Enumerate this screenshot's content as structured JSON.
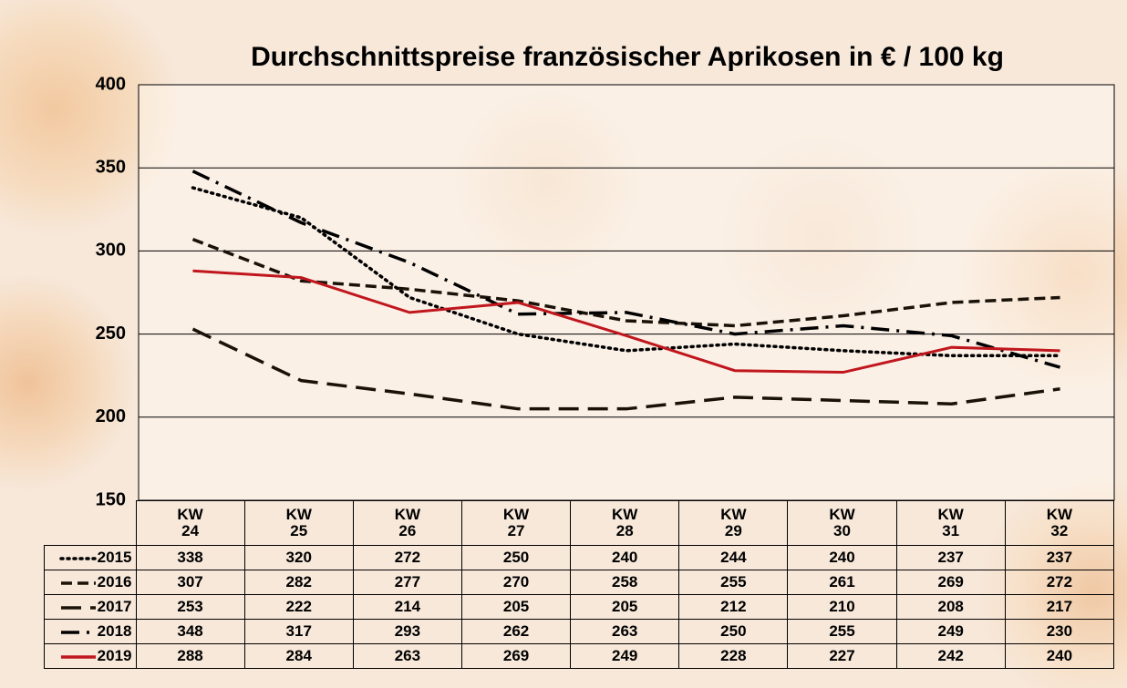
{
  "chart_data": {
    "type": "line",
    "title": "Durchschnittspreise französischer Aprikosen in € / 100 kg",
    "categories": [
      "KW 24",
      "KW 25",
      "KW 26",
      "KW 27",
      "KW 28",
      "KW 29",
      "KW 30",
      "KW 31",
      "KW 32"
    ],
    "series": [
      {
        "name": "2015",
        "color": "#000000",
        "line_style": "dotted",
        "values": [
          338,
          320,
          272,
          250,
          240,
          244,
          240,
          237,
          237
        ]
      },
      {
        "name": "2016",
        "color": "#1a1208",
        "line_style": "dashed",
        "values": [
          307,
          282,
          277,
          270,
          258,
          255,
          261,
          269,
          272
        ]
      },
      {
        "name": "2017",
        "color": "#1a1208",
        "line_style": "long-dashed",
        "values": [
          253,
          222,
          214,
          205,
          205,
          212,
          210,
          208,
          217
        ]
      },
      {
        "name": "2018",
        "color": "#000000",
        "line_style": "dash-dot",
        "values": [
          348,
          317,
          293,
          262,
          263,
          250,
          255,
          249,
          230
        ]
      },
      {
        "name": "2019",
        "color": "#c0161d",
        "line_style": "solid",
        "values": [
          288,
          284,
          263,
          269,
          249,
          228,
          227,
          242,
          240
        ]
      }
    ],
    "ylim": [
      150,
      400
    ],
    "yticks": [
      150,
      200,
      250,
      300,
      350,
      400
    ],
    "grid": true
  }
}
